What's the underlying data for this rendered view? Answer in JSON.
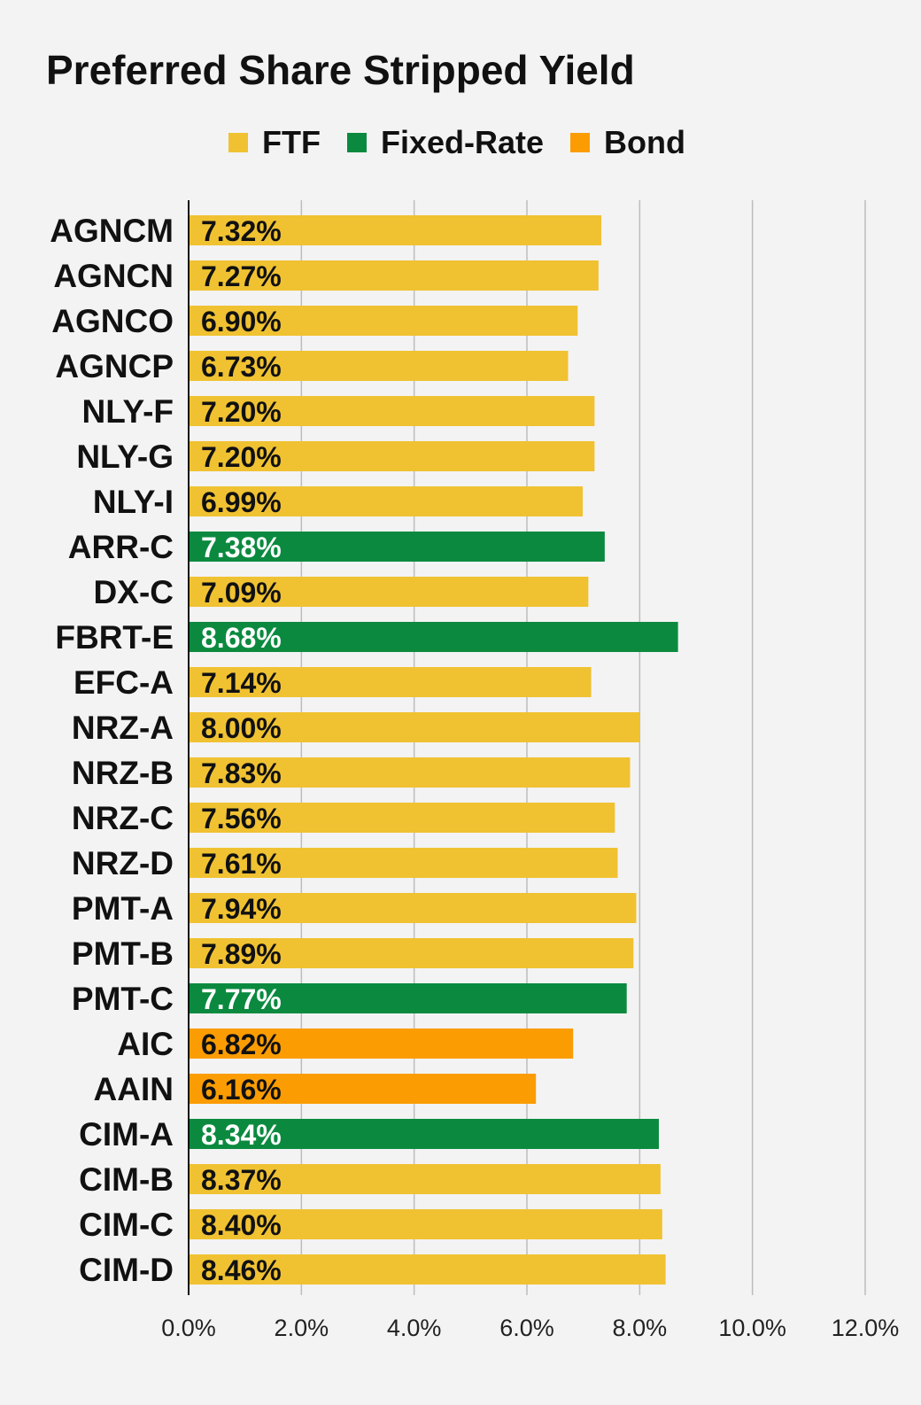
{
  "chart_data": {
    "type": "bar",
    "orientation": "horizontal",
    "title": "Preferred Share Stripped Yield",
    "xlim": [
      0,
      12
    ],
    "x_ticks": [
      "0.0%",
      "2.0%",
      "4.0%",
      "6.0%",
      "8.0%",
      "10.0%",
      "12.0%"
    ],
    "grid": true,
    "legend_position": "top-center",
    "legend": [
      {
        "name": "FTF",
        "color": "#f0c232"
      },
      {
        "name": "Fixed-Rate",
        "color": "#0b8a3f"
      },
      {
        "name": "Bond",
        "color": "#fb9d02"
      }
    ],
    "categories": [
      "AGNCM",
      "AGNCN",
      "AGNCO",
      "AGNCP",
      "NLY-F",
      "NLY-G",
      "NLY-I",
      "ARR-C",
      "DX-C",
      "FBRT-E",
      "EFC-A",
      "NRZ-A",
      "NRZ-B",
      "NRZ-C",
      "NRZ-D",
      "PMT-A",
      "PMT-B",
      "PMT-C",
      "AIC",
      "AAIN",
      "CIM-A",
      "CIM-B",
      "CIM-C",
      "CIM-D"
    ],
    "values": [
      7.32,
      7.27,
      6.9,
      6.73,
      7.2,
      7.2,
      6.99,
      7.38,
      7.09,
      8.68,
      7.14,
      8.0,
      7.83,
      7.56,
      7.61,
      7.94,
      7.89,
      7.77,
      6.82,
      6.16,
      8.34,
      8.37,
      8.4,
      8.46
    ],
    "value_labels": [
      "7.32%",
      "7.27%",
      "6.90%",
      "6.73%",
      "7.20%",
      "7.20%",
      "6.99%",
      "7.38%",
      "7.09%",
      "8.68%",
      "7.14%",
      "8.00%",
      "7.83%",
      "7.56%",
      "7.61%",
      "7.94%",
      "7.89%",
      "7.77%",
      "6.82%",
      "6.16%",
      "8.34%",
      "8.37%",
      "8.40%",
      "8.46%"
    ],
    "series_type": [
      "FTF",
      "FTF",
      "FTF",
      "FTF",
      "FTF",
      "FTF",
      "FTF",
      "Fixed-Rate",
      "FTF",
      "Fixed-Rate",
      "FTF",
      "FTF",
      "FTF",
      "FTF",
      "FTF",
      "FTF",
      "FTF",
      "Fixed-Rate",
      "Bond",
      "Bond",
      "Fixed-Rate",
      "FTF",
      "FTF",
      "FTF"
    ]
  }
}
